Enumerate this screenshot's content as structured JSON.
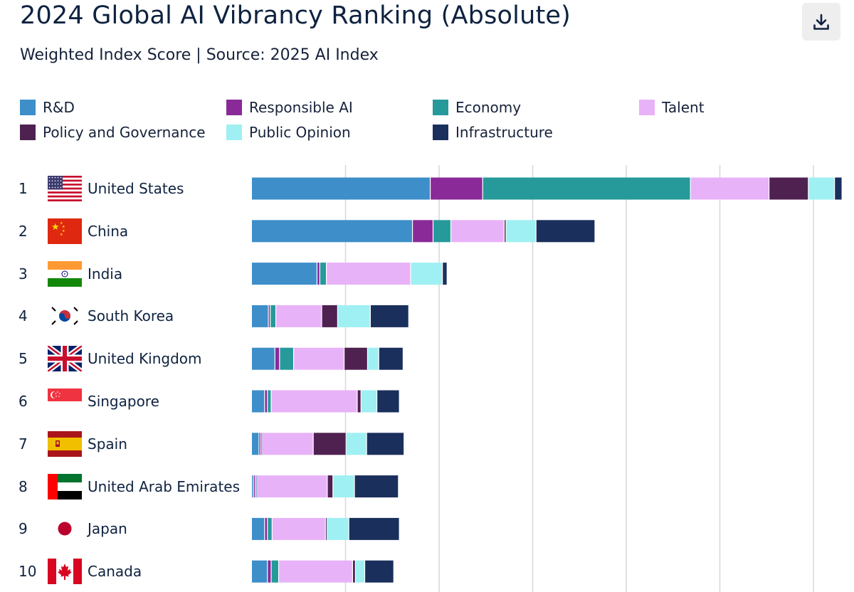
{
  "header": {
    "title": "2024 Global AI Vibrancy Ranking (Absolute)",
    "subtitle": "Weighted Index Score | Source: 2025 AI Index",
    "download_icon": "download-icon"
  },
  "chart_data": {
    "type": "bar",
    "orientation": "horizontal",
    "stacked": true,
    "title": "2024 Global AI Vibrancy Ranking (Absolute)",
    "subtitle": "Weighted Index Score | Source: 2025 AI Index",
    "xlabel": "",
    "ylabel": "",
    "xlim": [
      0,
      65
    ],
    "gridlines_at": [
      10,
      20,
      30,
      40,
      50,
      60
    ],
    "legend_position": "top",
    "categories": [
      "United States",
      "China",
      "India",
      "South Korea",
      "United Kingdom",
      "Singapore",
      "Spain",
      "United Arab Emirates",
      "Japan",
      "Canada"
    ],
    "ranks": [
      "1",
      "2",
      "3",
      "4",
      "5",
      "6",
      "7",
      "8",
      "9",
      "10"
    ],
    "flags": [
      "us-flag-icon",
      "cn-flag-icon",
      "in-flag-icon",
      "kr-flag-icon",
      "gb-flag-icon",
      "sg-flag-icon",
      "es-flag-icon",
      "ae-flag-icon",
      "jp-flag-icon",
      "ca-flag-icon"
    ],
    "series": [
      {
        "name": "R&D",
        "color": "#3d8ec9",
        "values": [
          19.1,
          17.2,
          7.0,
          1.8,
          2.5,
          1.4,
          0.8,
          0.2,
          1.4,
          1.7
        ]
      },
      {
        "name": "Responsible AI",
        "color": "#8a2a98",
        "values": [
          5.6,
          2.2,
          0.3,
          0.2,
          0.5,
          0.3,
          0.2,
          0.2,
          0.3,
          0.4
        ]
      },
      {
        "name": "Economy",
        "color": "#26999a",
        "values": [
          22.2,
          1.9,
          0.7,
          0.6,
          1.5,
          0.4,
          0.1,
          0.1,
          0.5,
          0.8
        ]
      },
      {
        "name": "Talent",
        "color": "#e8b2f8",
        "values": [
          8.4,
          5.7,
          9.0,
          4.9,
          5.4,
          9.2,
          5.5,
          7.6,
          5.7,
          7.9
        ]
      },
      {
        "name": "Policy and Governance",
        "color": "#4f2150",
        "values": [
          4.2,
          0.2,
          0.0,
          1.7,
          2.5,
          0.4,
          3.5,
          0.6,
          0.1,
          0.3
        ]
      },
      {
        "name": "Public Opinion",
        "color": "#9ff0f2",
        "values": [
          2.8,
          3.2,
          3.4,
          3.5,
          1.2,
          1.7,
          2.2,
          2.3,
          2.4,
          1.0
        ]
      },
      {
        "name": "Infrastructure",
        "color": "#1a2f5c",
        "values": [
          0.8,
          6.3,
          0.5,
          4.1,
          2.6,
          2.4,
          4.0,
          4.7,
          5.4,
          3.1
        ]
      }
    ]
  }
}
